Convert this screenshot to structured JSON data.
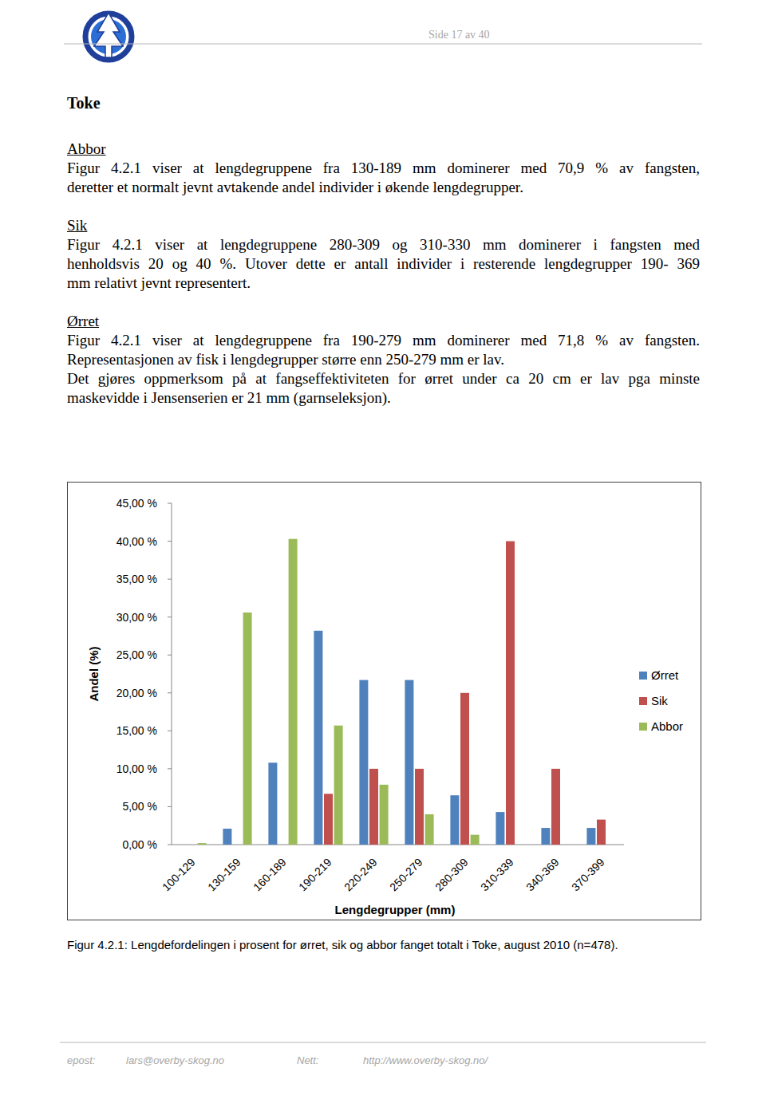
{
  "header": {
    "page_label": "Side 17 av 40"
  },
  "heading": "Toke",
  "sections": [
    {
      "title": "Abbor",
      "paragraphs": [
        [
          "Figur 4.2.1 viser at lengdegruppene fra 130-189 mm dominerer med 70,9 % av fangsten,",
          "deretter et normalt jevnt avtakende andel individer i økende lengdegrupper."
        ]
      ]
    },
    {
      "title": "Sik",
      "paragraphs": [
        [
          "Figur 4.2.1 viser at lengdegruppene 280-309 og 310-330 mm dominerer i fangsten med",
          "henholdsvis 20 og 40 %. Utover dette er antall individer i resterende lengdegrupper 190- 369",
          "mm relativt jevnt representert."
        ]
      ]
    },
    {
      "title": "Ørret",
      "paragraphs": [
        [
          "Figur 4.2.1 viser at lengdegruppene fra 190-279 mm dominerer med 71,8 % av fangsten.",
          "Representasjonen av fisk i lengdegrupper større enn 250-279 mm er lav."
        ],
        [
          "Det gjøres oppmerksom på at fangseffektiviteten for ørret under ca 20 cm er lav pga minste",
          "maskevidde i Jensenserien er 21 mm (garnseleksjon)."
        ]
      ]
    }
  ],
  "chart_data": {
    "type": "bar",
    "categories": [
      "100-129",
      "130-159",
      "160-189",
      "190-219",
      "220-249",
      "250-279",
      "280-309",
      "310-339",
      "340-369",
      "370-399"
    ],
    "series": [
      {
        "name": "Ørret",
        "color": "#4f81bd",
        "values": [
          0,
          2.1,
          10.8,
          28.2,
          21.7,
          21.7,
          6.5,
          4.3,
          2.2,
          2.2
        ]
      },
      {
        "name": "Sik",
        "color": "#c0504d",
        "values": [
          0,
          0,
          0,
          6.7,
          10,
          10,
          20,
          40,
          10,
          3.3
        ]
      },
      {
        "name": "Abbor",
        "color": "#9bbb59",
        "values": [
          0.2,
          30.6,
          40.3,
          15.7,
          7.9,
          4.0,
          1.3,
          0,
          0,
          0
        ]
      }
    ],
    "ylim": [
      0,
      45
    ],
    "yticks": [
      {
        "value": 0,
        "label": "0,00 %"
      },
      {
        "value": 5,
        "label": "5,00 %"
      },
      {
        "value": 10,
        "label": "10,00 %"
      },
      {
        "value": 15,
        "label": "15,00 %"
      },
      {
        "value": 20,
        "label": "20,00 %"
      },
      {
        "value": 25,
        "label": "25,00 %"
      },
      {
        "value": 30,
        "label": "30,00 %"
      },
      {
        "value": 35,
        "label": "35,00 %"
      },
      {
        "value": 40,
        "label": "40,00 %"
      },
      {
        "value": 45,
        "label": "45,00 %"
      }
    ],
    "x_label": "Lengdegrupper (mm)",
    "y_label": "Andel (%)",
    "legend": "right",
    "grid": false
  },
  "caption": "Figur 4.2.1: Lengdefordelingen i prosent for ørret, sik og abbor fanget totalt i Toke, august 2010 (n=478).",
  "footer": {
    "email_label": "epost:",
    "email": "lars@overby-skog.no",
    "web_label": "Nett:",
    "web": "http://www.overby-skog.no/"
  }
}
